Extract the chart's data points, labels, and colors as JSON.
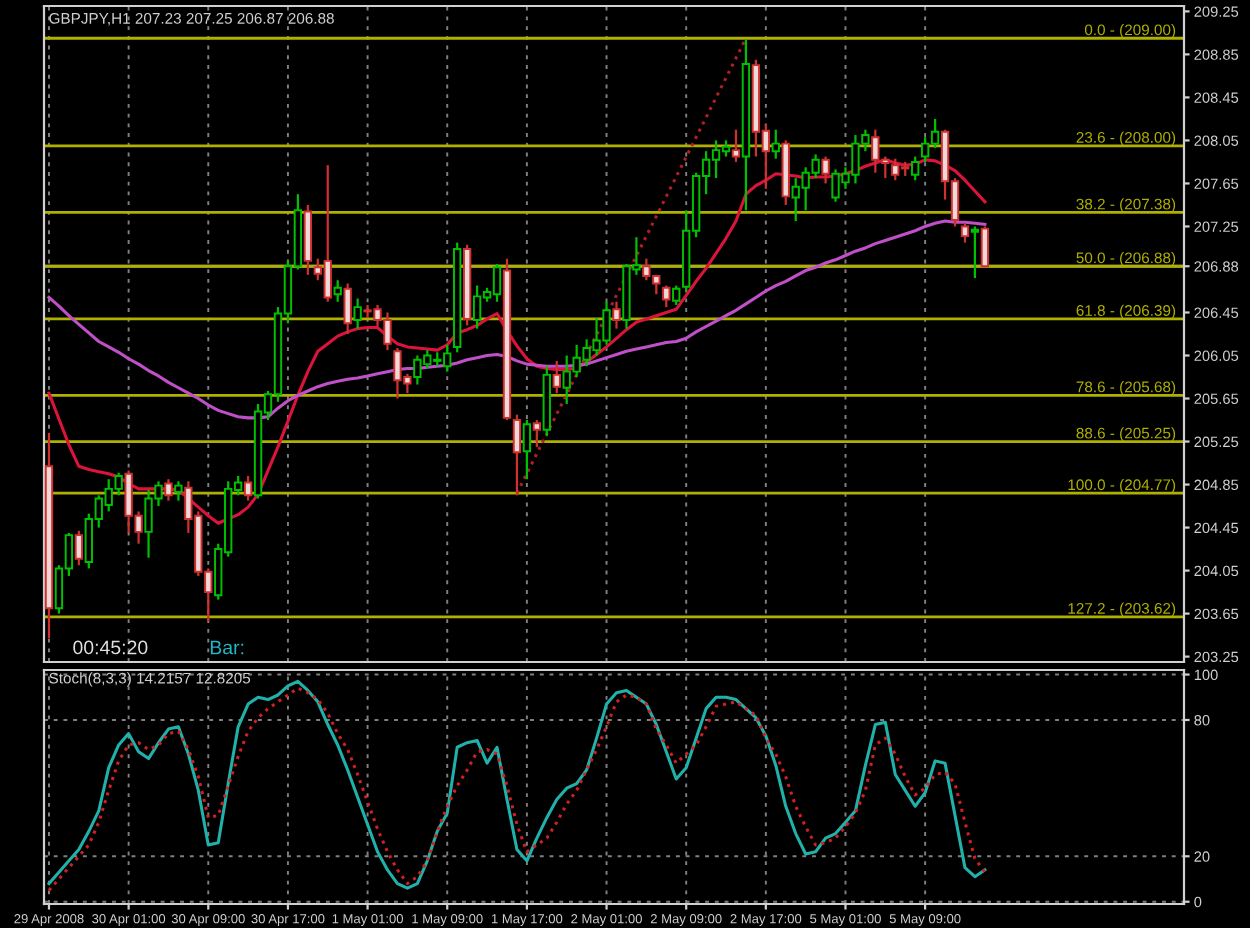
{
  "chart_data": [
    {
      "type": "candlestick",
      "title": "GBPJPY,H1 207.23 207.25 206.87 206.88",
      "categories": [
        null,
        null,
        null,
        null,
        null,
        null,
        null,
        null,
        null,
        null,
        null,
        null,
        null,
        null,
        null,
        null,
        null,
        null,
        null,
        null,
        null,
        null,
        null,
        null,
        null,
        null,
        null,
        null,
        null,
        null,
        null,
        null,
        null,
        null,
        null,
        null,
        null,
        null,
        null,
        null,
        null,
        null,
        null,
        null,
        null,
        null,
        null,
        null,
        null,
        null,
        null,
        null,
        null,
        null,
        null,
        null,
        null,
        null,
        null,
        null,
        null,
        null,
        null,
        null,
        null,
        null,
        null,
        null,
        null,
        null,
        null,
        null,
        null,
        null,
        null,
        null,
        null,
        null,
        null,
        null,
        null,
        null,
        null,
        null,
        null,
        null,
        null,
        null,
        null,
        null,
        null,
        null,
        null,
        null,
        null
      ],
      "ohlc": [
        [
          205.02,
          205.33,
          203.42,
          203.7
        ],
        [
          203.7,
          204.1,
          203.65,
          204.07
        ],
        [
          204.07,
          204.4,
          204.0,
          204.38
        ],
        [
          204.38,
          204.42,
          204.1,
          204.16
        ],
        [
          204.13,
          204.58,
          204.07,
          204.53
        ],
        [
          204.53,
          204.75,
          204.45,
          204.72
        ],
        [
          204.66,
          204.9,
          204.6,
          204.81
        ],
        [
          204.81,
          204.96,
          204.75,
          204.93
        ],
        [
          204.95,
          204.98,
          204.4,
          204.56
        ],
        [
          204.56,
          204.6,
          204.3,
          204.41
        ],
        [
          204.41,
          204.8,
          204.17,
          204.72
        ],
        [
          204.72,
          204.88,
          204.65,
          204.84
        ],
        [
          204.86,
          204.9,
          204.7,
          204.75
        ],
        [
          204.78,
          204.88,
          204.7,
          204.84
        ],
        [
          204.82,
          204.88,
          204.4,
          204.53
        ],
        [
          204.56,
          204.6,
          204.0,
          204.04
        ],
        [
          204.04,
          204.07,
          203.58,
          203.85
        ],
        [
          203.82,
          204.3,
          203.78,
          204.25
        ],
        [
          204.22,
          204.88,
          204.18,
          204.81
        ],
        [
          204.8,
          204.93,
          204.75,
          204.87
        ],
        [
          204.87,
          204.93,
          204.7,
          204.75
        ],
        [
          204.75,
          205.6,
          204.72,
          205.53
        ],
        [
          205.52,
          205.72,
          205.45,
          205.69
        ],
        [
          205.69,
          206.5,
          205.62,
          206.44
        ],
        [
          206.44,
          206.93,
          206.35,
          206.88
        ],
        [
          206.88,
          207.55,
          206.85,
          207.4
        ],
        [
          207.39,
          207.45,
          206.8,
          206.93
        ],
        [
          206.87,
          206.95,
          206.75,
          206.81
        ],
        [
          206.93,
          207.82,
          206.55,
          206.59
        ],
        [
          206.62,
          206.75,
          206.55,
          206.68
        ],
        [
          206.67,
          206.72,
          206.25,
          206.35
        ],
        [
          206.38,
          206.58,
          206.3,
          206.5
        ],
        [
          206.47,
          206.52,
          206.4,
          206.46
        ],
        [
          206.48,
          206.52,
          206.32,
          206.38
        ],
        [
          206.38,
          206.45,
          206.1,
          206.16
        ],
        [
          206.09,
          206.12,
          205.65,
          205.82
        ],
        [
          205.85,
          205.88,
          205.7,
          205.79
        ],
        [
          205.85,
          206.05,
          205.78,
          206.01
        ],
        [
          205.97,
          206.1,
          205.93,
          206.05
        ],
        [
          206.0,
          206.08,
          205.95,
          206.01
        ],
        [
          205.95,
          206.15,
          205.9,
          206.07
        ],
        [
          206.13,
          207.1,
          206.08,
          207.04
        ],
        [
          207.04,
          207.08,
          206.33,
          206.39
        ],
        [
          206.38,
          206.7,
          206.3,
          206.6
        ],
        [
          206.59,
          206.68,
          206.55,
          206.64
        ],
        [
          206.62,
          206.9,
          206.55,
          206.87
        ],
        [
          206.84,
          206.95,
          205.45,
          205.47
        ],
        [
          205.45,
          205.5,
          204.75,
          205.15
        ],
        [
          205.16,
          205.45,
          204.9,
          205.41
        ],
        [
          205.42,
          205.45,
          205.2,
          205.36
        ],
        [
          205.36,
          205.95,
          205.3,
          205.87
        ],
        [
          205.87,
          206.0,
          205.7,
          205.76
        ],
        [
          205.75,
          206.05,
          205.6,
          205.9
        ],
        [
          205.9,
          206.15,
          205.85,
          206.03
        ],
        [
          206.01,
          206.2,
          205.95,
          206.12
        ],
        [
          206.1,
          206.4,
          206.05,
          206.19
        ],
        [
          206.19,
          206.55,
          206.15,
          206.47
        ],
        [
          206.48,
          206.55,
          206.3,
          206.38
        ],
        [
          206.38,
          206.9,
          206.3,
          206.88
        ],
        [
          206.85,
          207.15,
          206.8,
          206.89
        ],
        [
          206.88,
          206.95,
          206.75,
          206.79
        ],
        [
          206.79,
          206.8,
          206.62,
          206.72
        ],
        [
          206.68,
          206.7,
          206.5,
          206.57
        ],
        [
          206.56,
          206.7,
          206.52,
          206.67
        ],
        [
          206.69,
          207.4,
          206.65,
          207.21
        ],
        [
          207.21,
          207.75,
          207.15,
          207.72
        ],
        [
          207.72,
          207.95,
          207.55,
          207.87
        ],
        [
          207.87,
          208.05,
          207.7,
          207.96
        ],
        [
          207.95,
          208.05,
          207.9,
          207.99
        ],
        [
          207.96,
          208.15,
          207.85,
          207.9
        ],
        [
          207.9,
          208.99,
          207.4,
          208.76
        ],
        [
          208.75,
          208.8,
          207.9,
          208.13
        ],
        [
          208.14,
          208.2,
          207.6,
          207.95
        ],
        [
          207.95,
          208.15,
          207.88,
          208.02
        ],
        [
          208.02,
          208.05,
          207.45,
          207.53
        ],
        [
          207.52,
          207.7,
          207.3,
          207.62
        ],
        [
          207.61,
          207.8,
          207.4,
          207.75
        ],
        [
          207.75,
          207.92,
          207.7,
          207.87
        ],
        [
          207.87,
          207.9,
          207.65,
          207.74
        ],
        [
          207.52,
          207.78,
          207.48,
          207.74
        ],
        [
          207.66,
          207.8,
          207.6,
          207.74
        ],
        [
          207.73,
          208.1,
          207.65,
          208.02
        ],
        [
          208.02,
          208.15,
          207.95,
          208.1
        ],
        [
          208.08,
          208.15,
          207.75,
          207.87
        ],
        [
          207.87,
          207.9,
          207.7,
          207.84
        ],
        [
          207.82,
          207.88,
          207.68,
          207.73
        ],
        [
          207.8,
          207.85,
          207.72,
          207.79
        ],
        [
          207.73,
          207.9,
          207.68,
          207.85
        ],
        [
          207.9,
          208.08,
          207.85,
          208.02
        ],
        [
          208.02,
          208.25,
          207.98,
          208.13
        ],
        [
          208.13,
          208.15,
          207.5,
          207.67
        ],
        [
          207.67,
          207.7,
          207.25,
          207.31
        ],
        [
          207.25,
          207.28,
          207.1,
          207.16
        ],
        [
          207.2,
          207.25,
          206.77,
          207.22
        ],
        [
          207.23,
          207.25,
          206.87,
          206.88
        ]
      ],
      "series": [
        {
          "type": "line",
          "color": "#dc143c",
          "values": [
            205.7,
            205.46,
            205.22,
            205.02,
            204.99,
            204.97,
            204.95,
            204.92,
            204.86,
            204.81,
            204.81,
            204.81,
            204.81,
            204.8,
            204.72,
            204.64,
            204.56,
            204.49,
            204.53,
            204.57,
            204.64,
            204.76,
            204.98,
            205.2,
            205.44,
            205.68,
            205.9,
            206.09,
            206.16,
            206.23,
            206.27,
            206.3,
            206.31,
            206.31,
            206.23,
            206.16,
            206.13,
            206.12,
            206.11,
            206.1,
            206.15,
            206.26,
            206.29,
            206.33,
            206.39,
            206.44,
            206.28,
            206.14,
            206.02,
            205.95,
            205.93,
            205.92,
            205.92,
            205.93,
            205.99,
            206.06,
            206.13,
            206.21,
            206.29,
            206.36,
            206.39,
            206.42,
            206.45,
            206.48,
            206.61,
            206.74,
            206.86,
            207.0,
            207.14,
            207.3,
            207.55,
            207.63,
            207.68,
            207.74,
            207.73,
            207.72,
            207.7,
            207.71,
            207.71,
            207.72,
            207.74,
            207.77,
            207.81,
            207.84,
            207.87,
            207.84,
            207.82,
            207.83,
            207.87,
            207.86,
            207.82,
            207.77,
            207.68,
            207.58,
            207.48
          ]
        },
        {
          "type": "line",
          "color": "#c050c8",
          "values": [
            206.59,
            206.51,
            206.42,
            206.34,
            206.26,
            206.18,
            206.13,
            206.08,
            206.02,
            205.97,
            205.91,
            205.86,
            205.8,
            205.75,
            205.7,
            205.65,
            205.59,
            205.54,
            205.51,
            205.48,
            205.47,
            205.47,
            205.48,
            205.56,
            205.63,
            205.68,
            205.72,
            205.76,
            205.79,
            205.81,
            205.83,
            205.84,
            205.86,
            205.88,
            205.9,
            205.92,
            205.93,
            205.93,
            205.94,
            205.95,
            205.96,
            205.98,
            206.01,
            206.03,
            206.05,
            206.06,
            206.04,
            206.0,
            205.97,
            205.96,
            205.95,
            205.95,
            205.95,
            205.96,
            205.97,
            206.0,
            206.03,
            206.06,
            206.09,
            206.11,
            206.13,
            206.15,
            206.17,
            206.18,
            206.21,
            206.27,
            206.32,
            206.37,
            206.42,
            206.47,
            206.53,
            206.59,
            206.65,
            206.7,
            206.74,
            206.79,
            206.84,
            206.87,
            206.91,
            206.94,
            206.98,
            207.02,
            207.05,
            207.09,
            207.12,
            207.15,
            207.18,
            207.21,
            207.25,
            207.28,
            207.3,
            207.29,
            207.29,
            207.28,
            207.27
          ]
        },
        {
          "type": "line",
          "color": "#b02020",
          "line_style": "dotted",
          "values": [
            null,
            null,
            null,
            null,
            null,
            null,
            null,
            null,
            null,
            null,
            null,
            null,
            null,
            null,
            null,
            null,
            null,
            null,
            null,
            null,
            null,
            null,
            null,
            null,
            null,
            null,
            null,
            null,
            null,
            null,
            null,
            null,
            null,
            null,
            null,
            null,
            null,
            null,
            null,
            null,
            null,
            null,
            null,
            null,
            null,
            null,
            null,
            204.77,
            null,
            null,
            null,
            null,
            null,
            null,
            null,
            null,
            null,
            null,
            null,
            null,
            null,
            null,
            null,
            null,
            null,
            null,
            null,
            null,
            null,
            null,
            209.0,
            null,
            null,
            null,
            null,
            null,
            null,
            null,
            null,
            null,
            null,
            null,
            null,
            null,
            null,
            null,
            null,
            null,
            null,
            null,
            null,
            null,
            null,
            null,
            null
          ]
        }
      ],
      "ref_lines": [
        {
          "axis": "y",
          "value": 206.88,
          "color": "#808080"
        },
        {
          "axis": "y",
          "value": 209.0,
          "label": "0.0 - (209.00)",
          "color": "#b0b000"
        },
        {
          "axis": "y",
          "value": 208.0,
          "label": "23.6 - (208.00)",
          "color": "#b0b000"
        },
        {
          "axis": "y",
          "value": 207.38,
          "label": "38.2 - (207.38)",
          "color": "#b0b000"
        },
        {
          "axis": "y",
          "value": 206.88,
          "label": "50.0 - (206.88)",
          "color": "#b0b000"
        },
        {
          "axis": "y",
          "value": 206.39,
          "label": "61.8 - (206.39)",
          "color": "#b0b000"
        },
        {
          "axis": "y",
          "value": 205.68,
          "label": "78.6 - (205.68)",
          "color": "#b0b000"
        },
        {
          "axis": "y",
          "value": 205.25,
          "label": "88.6 - (205.25)",
          "color": "#b0b000"
        },
        {
          "axis": "y",
          "value": 204.77,
          "label": "100.0 - (204.77)",
          "color": "#b0b000"
        },
        {
          "axis": "y",
          "value": 203.62,
          "label": "127.2 - (203.62)",
          "color": "#b0b000"
        }
      ],
      "annotations": [
        "00:45:20",
        "Bar:"
      ],
      "ylim": [
        203.2,
        209.3
      ],
      "yticks": [
        209.25,
        208.85,
        208.45,
        208.05,
        207.65,
        207.25,
        206.88,
        206.45,
        206.05,
        205.65,
        205.25,
        204.85,
        204.45,
        204.05,
        203.65,
        203.25
      ],
      "tick_labels": "y",
      "grid": "x"
    },
    {
      "type": "line",
      "title": "Stoch(8,3,3) 14.2157 12.8205",
      "categories": [
        "29 Apr 2008",
        null,
        null,
        null,
        null,
        null,
        null,
        null,
        "30 Apr 01:00",
        null,
        null,
        null,
        null,
        null,
        null,
        null,
        "30 Apr 09:00",
        null,
        null,
        null,
        null,
        null,
        null,
        null,
        "30 Apr 17:00",
        null,
        null,
        null,
        null,
        null,
        null,
        null,
        "1 May 01:00",
        null,
        null,
        null,
        null,
        null,
        null,
        null,
        "1 May 09:00",
        null,
        null,
        null,
        null,
        null,
        null,
        null,
        "1 May 17:00",
        null,
        null,
        null,
        null,
        null,
        null,
        null,
        "2 May 01:00",
        null,
        null,
        null,
        null,
        null,
        null,
        null,
        "2 May 09:00",
        null,
        null,
        null,
        null,
        null,
        null,
        null,
        "2 May 17:00",
        null,
        null,
        null,
        null,
        null,
        null,
        null,
        "5 May 01:00",
        null,
        null,
        null,
        null,
        null,
        null,
        null,
        "5 May 09:00",
        null,
        null,
        null,
        null,
        null,
        null
      ],
      "series": [
        {
          "color": "#20b2aa",
          "values": [
            8,
            13,
            18,
            23,
            31,
            40,
            59,
            69,
            74,
            66,
            63,
            70,
            76,
            77,
            65,
            49,
            25,
            26,
            52,
            77,
            87,
            90,
            89,
            91,
            95,
            97,
            93,
            88,
            78,
            69,
            58,
            46,
            34,
            22,
            14,
            8,
            6,
            8,
            18,
            31,
            39,
            68,
            70,
            71,
            61,
            68,
            45,
            23,
            18,
            28,
            37,
            45,
            50,
            52,
            58,
            72,
            87,
            92,
            93,
            90,
            87,
            78,
            66,
            54,
            59,
            72,
            85,
            90,
            90,
            89,
            85,
            81,
            73,
            60,
            42,
            30,
            21,
            22,
            28,
            30,
            35,
            40,
            60,
            78,
            79,
            56,
            49,
            42,
            48,
            62,
            61,
            38,
            15,
            11,
            14
          ]
        },
        {
          "color": "#d02020",
          "line_style": "dotted",
          "values": [
            5,
            10,
            15,
            20,
            25,
            35,
            49,
            62,
            69,
            70,
            67,
            69,
            74,
            75,
            67,
            55,
            37,
            38,
            51,
            64,
            75,
            81,
            85,
            88,
            91,
            94,
            92,
            89,
            83,
            74,
            67,
            56,
            44,
            32,
            22,
            14,
            8,
            11,
            18,
            31,
            42,
            51,
            58,
            66,
            67,
            65,
            51,
            34,
            22,
            25,
            28,
            35,
            43,
            49,
            58,
            67,
            77,
            88,
            91,
            90,
            87,
            76,
            69,
            61,
            65,
            69,
            77,
            86,
            87,
            88,
            85,
            82,
            72,
            65,
            55,
            42,
            33,
            25,
            26,
            28,
            33,
            39,
            49,
            69,
            72,
            65,
            55,
            47,
            50,
            56,
            57,
            52,
            35,
            19,
            13
          ]
        }
      ],
      "ylim": [
        -1,
        102
      ],
      "yticks": [
        0,
        20,
        80,
        100
      ],
      "grid": true
    }
  ]
}
